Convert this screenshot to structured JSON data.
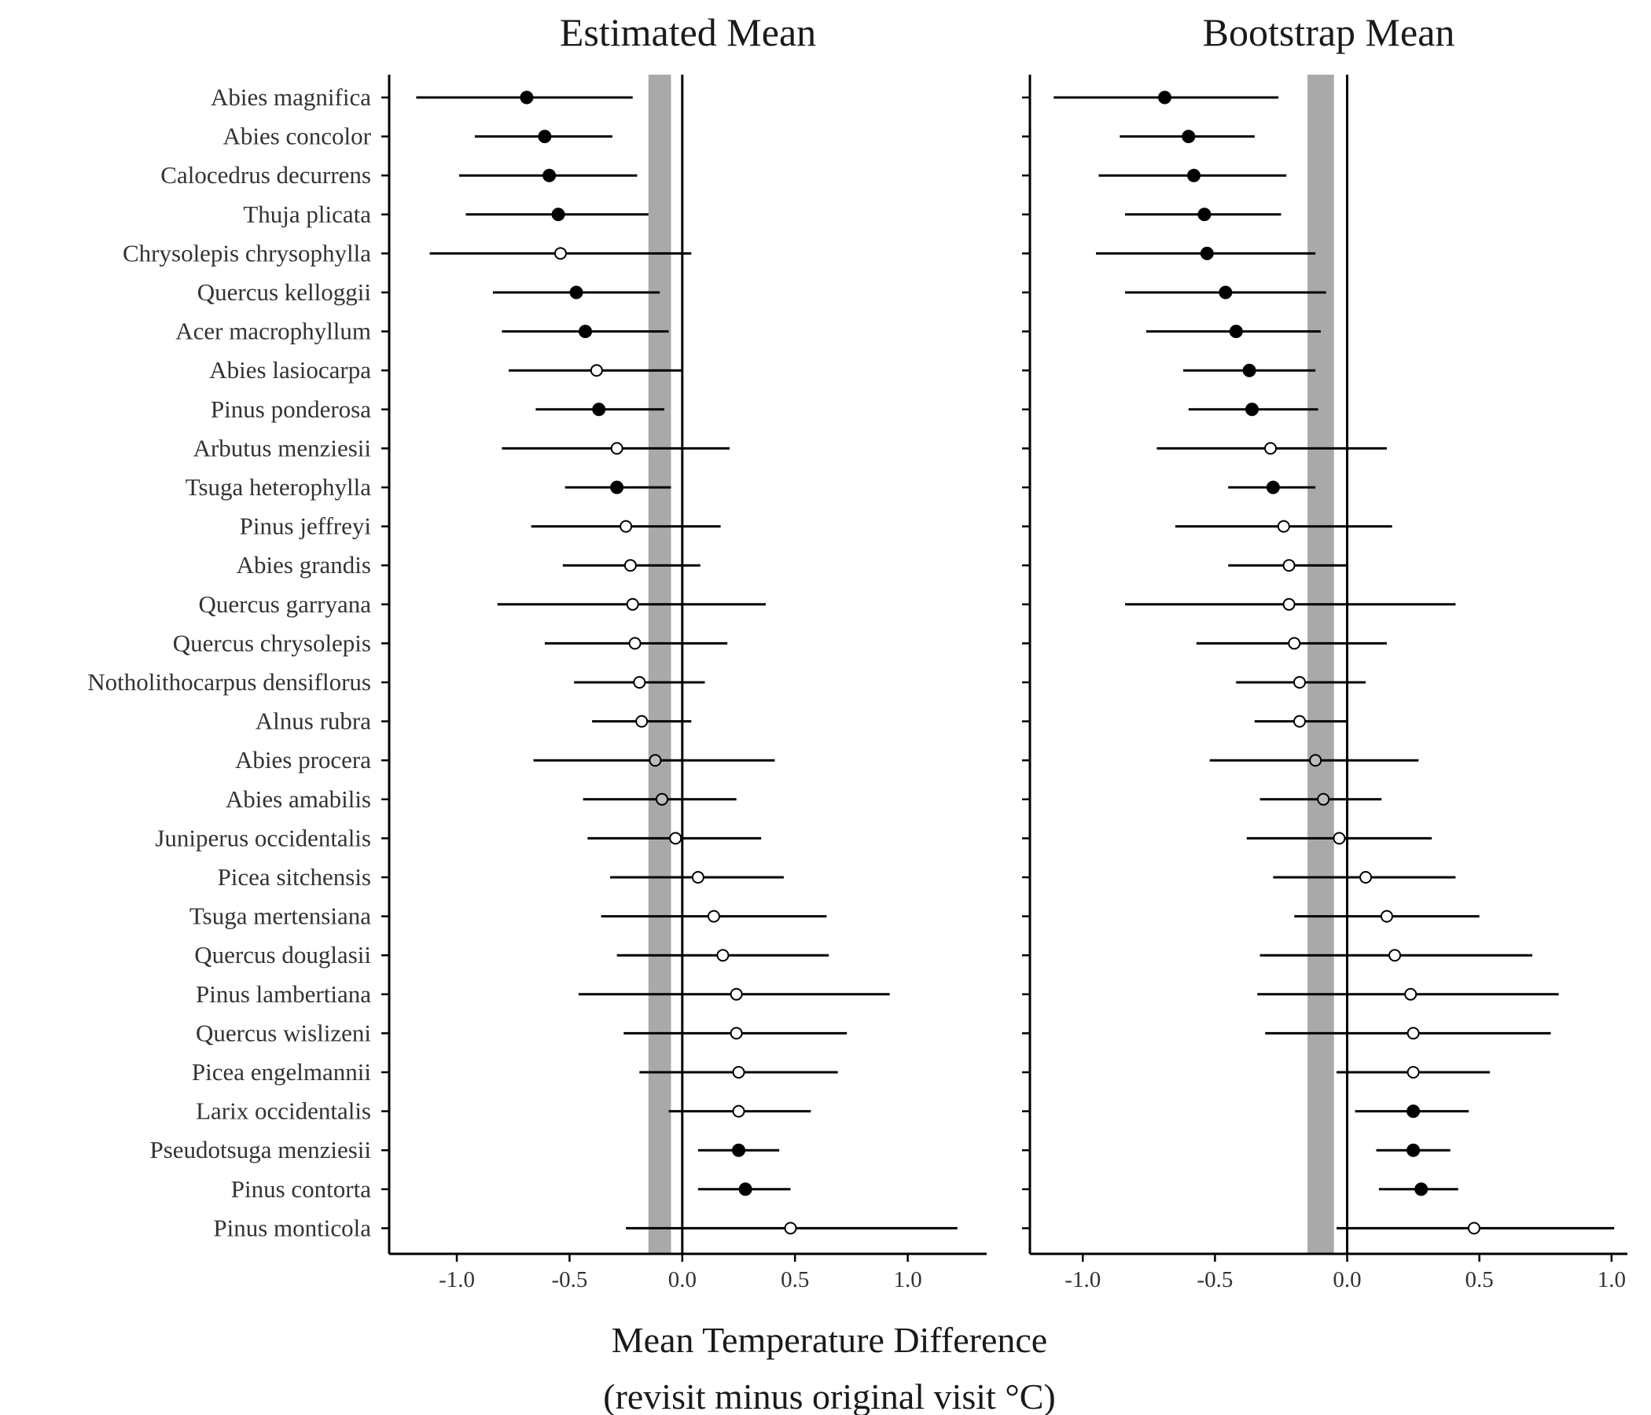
{
  "chart_data": {
    "type": "scatter",
    "xlabel": "Mean Temperature Difference",
    "xlabel_sub": "(revisit minus original visit °C)",
    "categories": [
      "Abies  magnifica",
      "Abies  concolor",
      "Calocedrus  decurrens",
      "Thuja  plicata",
      "Chrysolepis  chrysophylla",
      "Quercus  kelloggii",
      "Acer  macrophyllum",
      "Abies  lasiocarpa",
      "Pinus  ponderosa",
      "Arbutus  menziesii",
      "Tsuga  heterophylla",
      "Pinus  jeffreyi",
      "Abies  grandis",
      "Quercus  garryana",
      "Quercus  chrysolepis",
      "Notholithocarpus  densiflorus",
      "Alnus  rubra",
      "Abies  procera",
      "Abies  amabilis",
      "Juniperus  occidentalis",
      "Picea  sitchensis",
      "Tsuga  mertensiana",
      "Quercus  douglasii",
      "Pinus  lambertiana",
      "Quercus  wislizeni",
      "Picea  engelmannii",
      "Larix occidentalis",
      "Pseudotsuga  menziesii",
      "Pinus  contorta",
      "Pinus  monticola"
    ],
    "reference_band": [
      -0.15,
      -0.05
    ],
    "reference_line": 0,
    "grid": false,
    "panels": [
      {
        "title": "Estimated Mean",
        "xlim": [
          -1.3,
          1.35
        ],
        "xticks": [
          -1.0,
          -0.5,
          0.0,
          0.5,
          1.0
        ],
        "xtick_labels": [
          "-1.0",
          "-0.5",
          "0.0",
          "0.5",
          "1.0"
        ],
        "mean": [
          -0.69,
          -0.61,
          -0.59,
          -0.55,
          -0.54,
          -0.47,
          -0.43,
          -0.38,
          -0.37,
          -0.29,
          -0.29,
          -0.25,
          -0.23,
          -0.22,
          -0.21,
          -0.19,
          -0.18,
          -0.12,
          -0.09,
          -0.03,
          0.07,
          0.14,
          0.18,
          0.24,
          0.24,
          0.25,
          0.25,
          0.25,
          0.28,
          0.48
        ],
        "lower": [
          -1.18,
          -0.92,
          -0.99,
          -0.96,
          -1.12,
          -0.84,
          -0.8,
          -0.77,
          -0.65,
          -0.8,
          -0.52,
          -0.67,
          -0.53,
          -0.82,
          -0.61,
          -0.48,
          -0.4,
          -0.66,
          -0.44,
          -0.42,
          -0.32,
          -0.36,
          -0.29,
          -0.46,
          -0.26,
          -0.19,
          -0.06,
          0.07,
          0.07,
          -0.25
        ],
        "upper": [
          -0.22,
          -0.31,
          -0.2,
          -0.15,
          0.04,
          -0.1,
          -0.06,
          0.0,
          -0.08,
          0.21,
          -0.05,
          0.17,
          0.08,
          0.37,
          0.2,
          0.1,
          0.04,
          0.41,
          0.24,
          0.35,
          0.45,
          0.64,
          0.65,
          0.92,
          0.73,
          0.69,
          0.57,
          0.43,
          0.48,
          1.22
        ],
        "filled": [
          true,
          true,
          true,
          true,
          false,
          true,
          true,
          false,
          true,
          false,
          true,
          false,
          false,
          false,
          false,
          false,
          false,
          false,
          false,
          false,
          false,
          false,
          false,
          false,
          false,
          false,
          false,
          true,
          true,
          false
        ],
        "gray_fill": [
          false,
          false,
          false,
          false,
          false,
          false,
          false,
          false,
          false,
          false,
          false,
          false,
          false,
          false,
          false,
          false,
          false,
          true,
          true,
          false,
          false,
          false,
          false,
          false,
          false,
          false,
          false,
          false,
          false,
          false
        ]
      },
      {
        "title": "Bootstrap Mean",
        "xlim": [
          -1.2,
          1.06
        ],
        "xticks": [
          -1.0,
          -0.5,
          0.0,
          0.5,
          1.0
        ],
        "xtick_labels": [
          "-1.0",
          "-0.5",
          "0.0",
          "0.5",
          "1.0"
        ],
        "mean": [
          -0.69,
          -0.6,
          -0.58,
          -0.54,
          -0.53,
          -0.46,
          -0.42,
          -0.37,
          -0.36,
          -0.29,
          -0.28,
          -0.24,
          -0.22,
          -0.22,
          -0.2,
          -0.18,
          -0.18,
          -0.12,
          -0.09,
          -0.03,
          0.07,
          0.15,
          0.18,
          0.24,
          0.25,
          0.25,
          0.25,
          0.25,
          0.28,
          0.48
        ],
        "lower": [
          -1.11,
          -0.86,
          -0.94,
          -0.84,
          -0.95,
          -0.84,
          -0.76,
          -0.62,
          -0.6,
          -0.72,
          -0.45,
          -0.65,
          -0.45,
          -0.84,
          -0.57,
          -0.42,
          -0.35,
          -0.52,
          -0.33,
          -0.38,
          -0.28,
          -0.2,
          -0.33,
          -0.34,
          -0.31,
          -0.04,
          0.03,
          0.11,
          0.12,
          -0.04
        ],
        "upper": [
          -0.26,
          -0.35,
          -0.23,
          -0.25,
          -0.12,
          -0.08,
          -0.1,
          -0.12,
          -0.11,
          0.15,
          -0.12,
          0.17,
          0.0,
          0.41,
          0.15,
          0.07,
          0.0,
          0.27,
          0.13,
          0.32,
          0.41,
          0.5,
          0.7,
          0.8,
          0.77,
          0.54,
          0.46,
          0.39,
          0.42,
          1.01
        ],
        "filled": [
          true,
          true,
          true,
          true,
          true,
          true,
          true,
          true,
          true,
          false,
          true,
          false,
          false,
          false,
          false,
          false,
          false,
          false,
          false,
          false,
          false,
          false,
          false,
          false,
          false,
          false,
          true,
          true,
          true,
          false
        ],
        "gray_fill": [
          false,
          false,
          false,
          false,
          false,
          false,
          false,
          false,
          false,
          false,
          false,
          false,
          false,
          false,
          false,
          false,
          false,
          true,
          true,
          false,
          false,
          false,
          false,
          false,
          false,
          false,
          false,
          false,
          false,
          false
        ]
      }
    ]
  }
}
